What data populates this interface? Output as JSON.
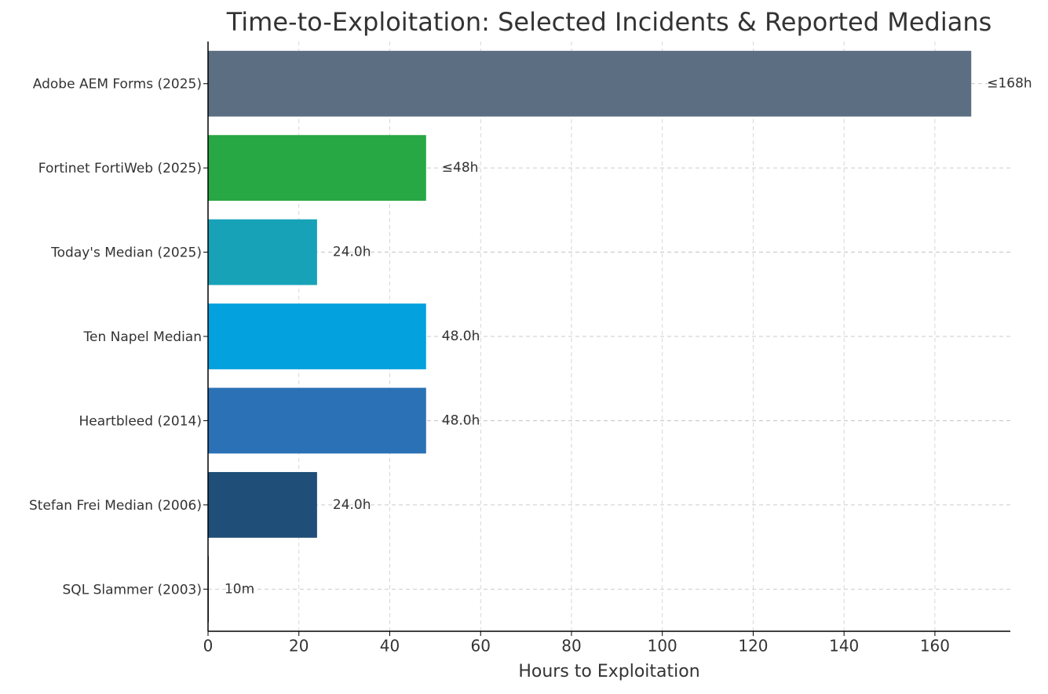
{
  "chart_data": {
    "type": "barh",
    "title": "Time-to-Exploitation: Selected Incidents & Reported Medians",
    "x_label": "Hours to Exploitation",
    "categories": [
      "Adobe AEM Forms (2025)",
      "Fortinet FortiWeb (2025)",
      "Today's Median (2025)",
      "Ten Napel Median",
      "Heartbleed (2014)",
      "Stefan Frei Median (2006)",
      "SQL Slammer (2003)"
    ],
    "values": [
      168,
      48,
      24,
      48,
      48,
      24,
      0.1667
    ],
    "value_labels": [
      "≤168h",
      "≤48h",
      "24.0h",
      "48.0h",
      "48.0h",
      "24.0h",
      "10m"
    ],
    "colors": [
      "#5b6e82",
      "#28a745",
      "#17a2b8",
      "#03a1dd",
      "#2b71b5",
      "#1f4e78",
      "#1b3a5c"
    ],
    "xlim": [
      0,
      176.6
    ],
    "xticks": [
      0,
      20,
      40,
      60,
      80,
      100,
      120,
      140,
      160
    ],
    "grid": true
  }
}
